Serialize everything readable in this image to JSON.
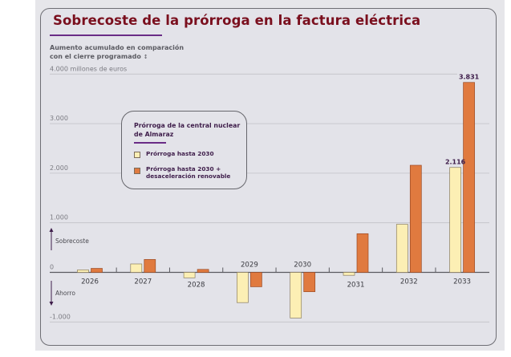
{
  "chart_data": {
    "type": "bar",
    "title": "Sobrecoste de la prórroga en la factura eléctrica",
    "subtitle": "Aumento acumulado en comparación con el cierre programado",
    "ylabel": "4.000 millones de euros",
    "xlabel": "",
    "ylim": [
      -1000,
      4000
    ],
    "yticks": [
      {
        "value": 4000,
        "label": "4.000 millones de euros"
      },
      {
        "value": 3000,
        "label": "3.000"
      },
      {
        "value": 2000,
        "label": "2.000"
      },
      {
        "value": 1000,
        "label": "1.000"
      },
      {
        "value": 0,
        "label": "0"
      },
      {
        "value": -1000,
        "label": "-1.000"
      }
    ],
    "grid": true,
    "categories": [
      "2026",
      "2027",
      "2028",
      "2029",
      "2030",
      "2031",
      "2032",
      "2033"
    ],
    "series": [
      {
        "name": "Prórroga hasta 2030",
        "color": "#fcefb4",
        "values": [
          50,
          170,
          -110,
          -610,
          -920,
          -60,
          970,
          2116
        ]
      },
      {
        "name": "Prórroga hasta 2030 + desaceleración renovable",
        "color": "#e07a3f",
        "values": [
          80,
          260,
          60,
          -290,
          -390,
          780,
          2160,
          3831
        ]
      }
    ],
    "data_labels": [
      {
        "category": "2033",
        "series": 0,
        "text": "2.116"
      },
      {
        "category": "2033",
        "series": 1,
        "text": "3.831"
      }
    ],
    "annotations": {
      "positive": "Sobrecoste",
      "negative": "Ahorro"
    },
    "legend": {
      "title": "Prórroga de la central nuclear de Almaraz",
      "placement": "top-left"
    }
  },
  "title": "Sobrecoste de la prórroga en la factura eléctrica",
  "subtitle_line1": "Aumento acumulado en comparación",
  "subtitle_line2": "con el cierre programado",
  "subtitle_arrow": "↕",
  "unit": "4.000 millones de euros",
  "legend": {
    "title": "Prórroga de la central nuclear de Almaraz",
    "items": [
      {
        "label": "Prórroga hasta 2030",
        "color": "#fcefb4"
      },
      {
        "label": "Prórroga hasta 2030 + desaceleración renovable",
        "color": "#e07a3f"
      }
    ]
  },
  "colors": {
    "title": "#7a0f1e",
    "accent": "#6a2c86",
    "bar_light": "#fcefb4",
    "bar_dark": "#e07a3f"
  }
}
